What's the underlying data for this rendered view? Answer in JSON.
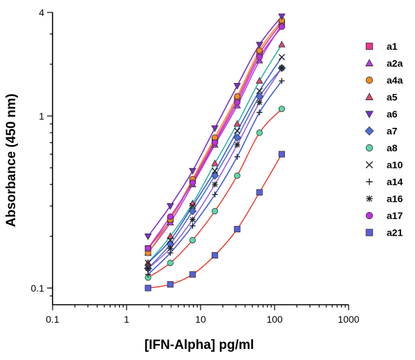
{
  "chart_data": {
    "type": "scatter",
    "xlabel": "[IFN-Alpha] pg/ml",
    "ylabel": "Absorbance (450 nm)",
    "x_scale": "log",
    "y_scale": "log",
    "xlim": [
      0.1,
      1000
    ],
    "ylim": [
      0.08,
      4
    ],
    "x_ticks": [
      0.1,
      1,
      10,
      100,
      1000
    ],
    "x_tick_labels": [
      "0.1",
      "1",
      "10",
      "100",
      "1000"
    ],
    "y_ticks": [
      0.1,
      1,
      4
    ],
    "y_tick_labels": [
      "0.1",
      "1",
      "4"
    ],
    "legend_position": "right",
    "x": [
      1.95,
      3.9,
      7.8,
      15.6,
      31.25,
      62.5,
      125
    ],
    "series": [
      {
        "name": "a1",
        "marker": "square",
        "color": "#e8368f",
        "fit_color": "#e8368f",
        "values": [
          0.17,
          0.25,
          0.42,
          0.72,
          1.25,
          2.3,
          3.5
        ]
      },
      {
        "name": "a2a",
        "marker": "triangle-up",
        "color": "#b23fe0",
        "fit_color": "#b23fe0",
        "values": [
          0.16,
          0.24,
          0.4,
          0.68,
          1.15,
          2.1,
          3.4
        ]
      },
      {
        "name": "a4a",
        "marker": "circle",
        "color": "#f28a1e",
        "fit_color": "#f28a1e",
        "values": [
          0.16,
          0.25,
          0.43,
          0.75,
          1.3,
          2.4,
          3.6
        ]
      },
      {
        "name": "a5",
        "marker": "triangle-up",
        "color": "#d64b6b",
        "fit_color": "#2fb3a0",
        "values": [
          0.14,
          0.2,
          0.31,
          0.53,
          0.9,
          1.6,
          2.6
        ]
      },
      {
        "name": "a6",
        "marker": "triangle-down",
        "color": "#7a2fc7",
        "fit_color": "#7a2fc7",
        "values": [
          0.2,
          0.3,
          0.48,
          0.85,
          1.5,
          2.6,
          3.8
        ]
      },
      {
        "name": "a7",
        "marker": "diamond",
        "color": "#4a6fd6",
        "fit_color": "#4a6fd6",
        "values": [
          0.13,
          0.18,
          0.28,
          0.45,
          0.75,
          1.3,
          1.9
        ]
      },
      {
        "name": "a8",
        "marker": "circle",
        "color": "#5fd6a8",
        "fit_color": "#e8473a",
        "values": [
          0.115,
          0.14,
          0.19,
          0.28,
          0.45,
          0.8,
          1.1
        ]
      },
      {
        "name": "a10",
        "marker": "x",
        "color": "#222222",
        "fit_color": "#3c5bd9",
        "values": [
          0.14,
          0.19,
          0.3,
          0.48,
          0.82,
          1.4,
          2.2
        ]
      },
      {
        "name": "a14",
        "marker": "plus",
        "color": "#222222",
        "fit_color": "#3c5bd9",
        "values": [
          0.12,
          0.16,
          0.23,
          0.35,
          0.58,
          1.05,
          1.6
        ]
      },
      {
        "name": "a16",
        "marker": "asterisk",
        "color": "#222222",
        "fit_color": "#9a5fd6",
        "values": [
          0.13,
          0.17,
          0.25,
          0.4,
          0.68,
          1.2,
          1.9
        ]
      },
      {
        "name": "a17",
        "marker": "circle",
        "color": "#c030e0",
        "fit_color": "#c030e0",
        "values": [
          0.17,
          0.26,
          0.41,
          0.7,
          1.2,
          2.2,
          3.3
        ]
      },
      {
        "name": "a21",
        "marker": "square",
        "color": "#5a5fd8",
        "fit_color": "#e8473a",
        "values": [
          0.1,
          0.105,
          0.12,
          0.155,
          0.22,
          0.36,
          0.6
        ]
      }
    ]
  }
}
